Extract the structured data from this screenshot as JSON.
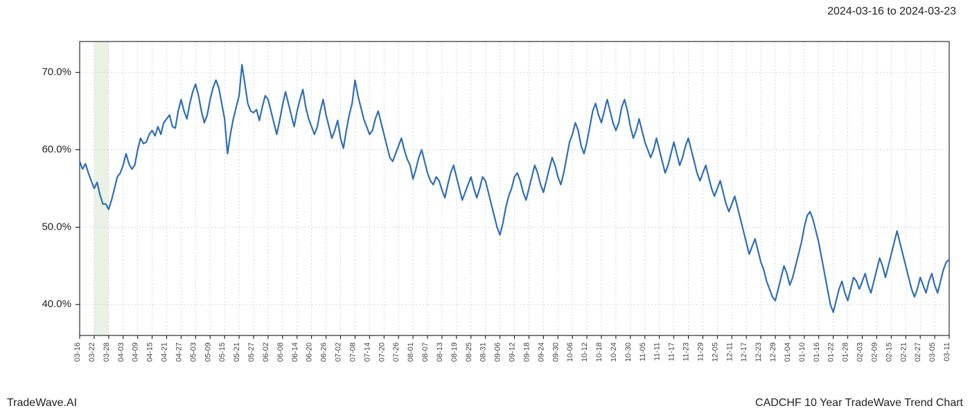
{
  "header": {
    "date_range": "2024-03-16 to 2024-03-23"
  },
  "footer": {
    "brand": "TradeWave.AI",
    "title": "CADCHF 10 Year TradeWave Trend Chart"
  },
  "chart": {
    "type": "line",
    "background_color": "#ffffff",
    "plot_border_color": "#000000",
    "plot_border_width": 1,
    "grid_color": "#cccccc",
    "grid_dash": "2,3",
    "line_color": "#2e6eb5",
    "line_width": 2.2,
    "highlight_band": {
      "fill": "#e2edda",
      "opacity": 0.7,
      "x_start_index": 1,
      "x_end_index": 2
    },
    "ylim": [
      36,
      74
    ],
    "yticks": [
      40,
      50,
      60,
      70
    ],
    "ytick_labels": [
      "40.0%",
      "50.0%",
      "60.0%",
      "70.0%"
    ],
    "ytick_fontsize": 15,
    "xtick_fontsize": 11,
    "xtick_rotation": -90,
    "x_labels": [
      "03-16",
      "03-22",
      "03-28",
      "04-03",
      "04-09",
      "04-15",
      "04-21",
      "04-27",
      "05-03",
      "05-09",
      "05-15",
      "05-21",
      "05-27",
      "06-02",
      "06-08",
      "06-14",
      "06-20",
      "06-26",
      "07-02",
      "07-08",
      "07-14",
      "07-20",
      "07-26",
      "08-01",
      "08-07",
      "08-13",
      "08-19",
      "08-25",
      "08-31",
      "09-06",
      "09-12",
      "09-18",
      "09-24",
      "09-30",
      "10-06",
      "10-12",
      "10-18",
      "10-24",
      "10-30",
      "11-05",
      "11-11",
      "11-17",
      "11-23",
      "11-29",
      "12-05",
      "12-11",
      "12-17",
      "12-23",
      "12-29",
      "01-04",
      "01-10",
      "01-16",
      "01-22",
      "01-28",
      "02-03",
      "02-09",
      "02-15",
      "02-21",
      "02-27",
      "03-05",
      "03-11"
    ],
    "series": {
      "name": "CADCHF trend",
      "values": [
        58.5,
        57.5,
        58.2,
        57.0,
        56.0,
        55.0,
        55.8,
        54.2,
        53.0,
        53.0,
        52.3,
        53.5,
        55.0,
        56.5,
        57.0,
        58.0,
        59.5,
        58.2,
        57.5,
        58.0,
        60.0,
        61.5,
        60.8,
        61.0,
        62.0,
        62.5,
        61.8,
        63.0,
        62.0,
        63.5,
        64.0,
        64.5,
        63.0,
        62.8,
        65.0,
        66.5,
        65.0,
        64.0,
        66.0,
        67.5,
        68.5,
        67.0,
        65.0,
        63.5,
        64.5,
        66.5,
        68.0,
        69.0,
        68.0,
        66.0,
        64.0,
        59.5,
        62.0,
        64.0,
        65.5,
        67.0,
        71.0,
        68.5,
        66.0,
        65.0,
        64.8,
        65.2,
        63.8,
        65.5,
        67.0,
        66.5,
        65.0,
        63.5,
        62.0,
        63.8,
        65.8,
        67.5,
        66.0,
        64.5,
        63.0,
        65.0,
        66.5,
        67.8,
        65.5,
        64.0,
        63.0,
        62.0,
        63.0,
        65.0,
        66.5,
        64.5,
        63.0,
        61.5,
        62.5,
        63.8,
        61.5,
        60.2,
        62.5,
        64.5,
        66.0,
        69.0,
        67.0,
        65.5,
        64.0,
        63.0,
        62.0,
        62.5,
        64.0,
        65.0,
        63.5,
        62.0,
        60.5,
        59.0,
        58.5,
        59.5,
        60.5,
        61.5,
        60.0,
        58.8,
        58.0,
        56.2,
        57.5,
        59.0,
        60.0,
        58.5,
        57.0,
        56.0,
        55.5,
        56.5,
        56.0,
        54.8,
        53.8,
        55.5,
        57.0,
        58.0,
        56.5,
        55.0,
        53.5,
        54.5,
        55.5,
        56.5,
        55.0,
        53.8,
        55.0,
        56.5,
        56.0,
        54.5,
        53.0,
        51.5,
        50.0,
        49.0,
        50.5,
        52.5,
        54.0,
        55.0,
        56.5,
        57.0,
        56.0,
        54.5,
        53.5,
        55.0,
        56.5,
        58.0,
        57.0,
        55.5,
        54.5,
        56.0,
        57.5,
        59.0,
        58.0,
        56.5,
        55.5,
        57.0,
        59.0,
        61.0,
        62.0,
        63.5,
        62.5,
        60.5,
        59.5,
        61.0,
        63.0,
        65.0,
        66.0,
        64.5,
        63.5,
        65.0,
        66.5,
        65.0,
        63.5,
        62.5,
        63.5,
        65.5,
        66.5,
        65.0,
        63.0,
        61.5,
        62.5,
        64.0,
        62.5,
        61.0,
        60.0,
        59.0,
        60.0,
        61.5,
        60.0,
        58.5,
        57.0,
        58.0,
        59.5,
        61.0,
        59.5,
        58.0,
        59.0,
        60.5,
        61.5,
        60.0,
        58.5,
        57.0,
        56.0,
        57.0,
        58.0,
        56.5,
        55.0,
        54.0,
        55.0,
        56.0,
        54.5,
        53.0,
        52.0,
        53.0,
        54.0,
        52.5,
        51.0,
        49.5,
        48.0,
        46.5,
        47.5,
        48.5,
        47.0,
        45.5,
        44.5,
        43.0,
        42.0,
        41.0,
        40.5,
        42.0,
        43.5,
        45.0,
        44.0,
        42.5,
        43.5,
        45.0,
        46.5,
        48.0,
        50.0,
        51.5,
        52.0,
        51.0,
        49.5,
        48.0,
        46.0,
        44.0,
        42.0,
        40.0,
        39.0,
        40.5,
        42.0,
        43.0,
        41.5,
        40.5,
        42.0,
        43.5,
        43.0,
        42.0,
        43.0,
        44.0,
        42.5,
        41.5,
        43.0,
        44.5,
        46.0,
        45.0,
        43.5,
        45.0,
        46.5,
        48.0,
        49.5,
        48.0,
        46.5,
        45.0,
        43.5,
        42.0,
        41.0,
        42.0,
        43.5,
        42.5,
        41.5,
        43.0,
        44.0,
        42.5,
        41.5,
        43.0,
        44.5,
        45.5,
        45.8
      ]
    }
  }
}
